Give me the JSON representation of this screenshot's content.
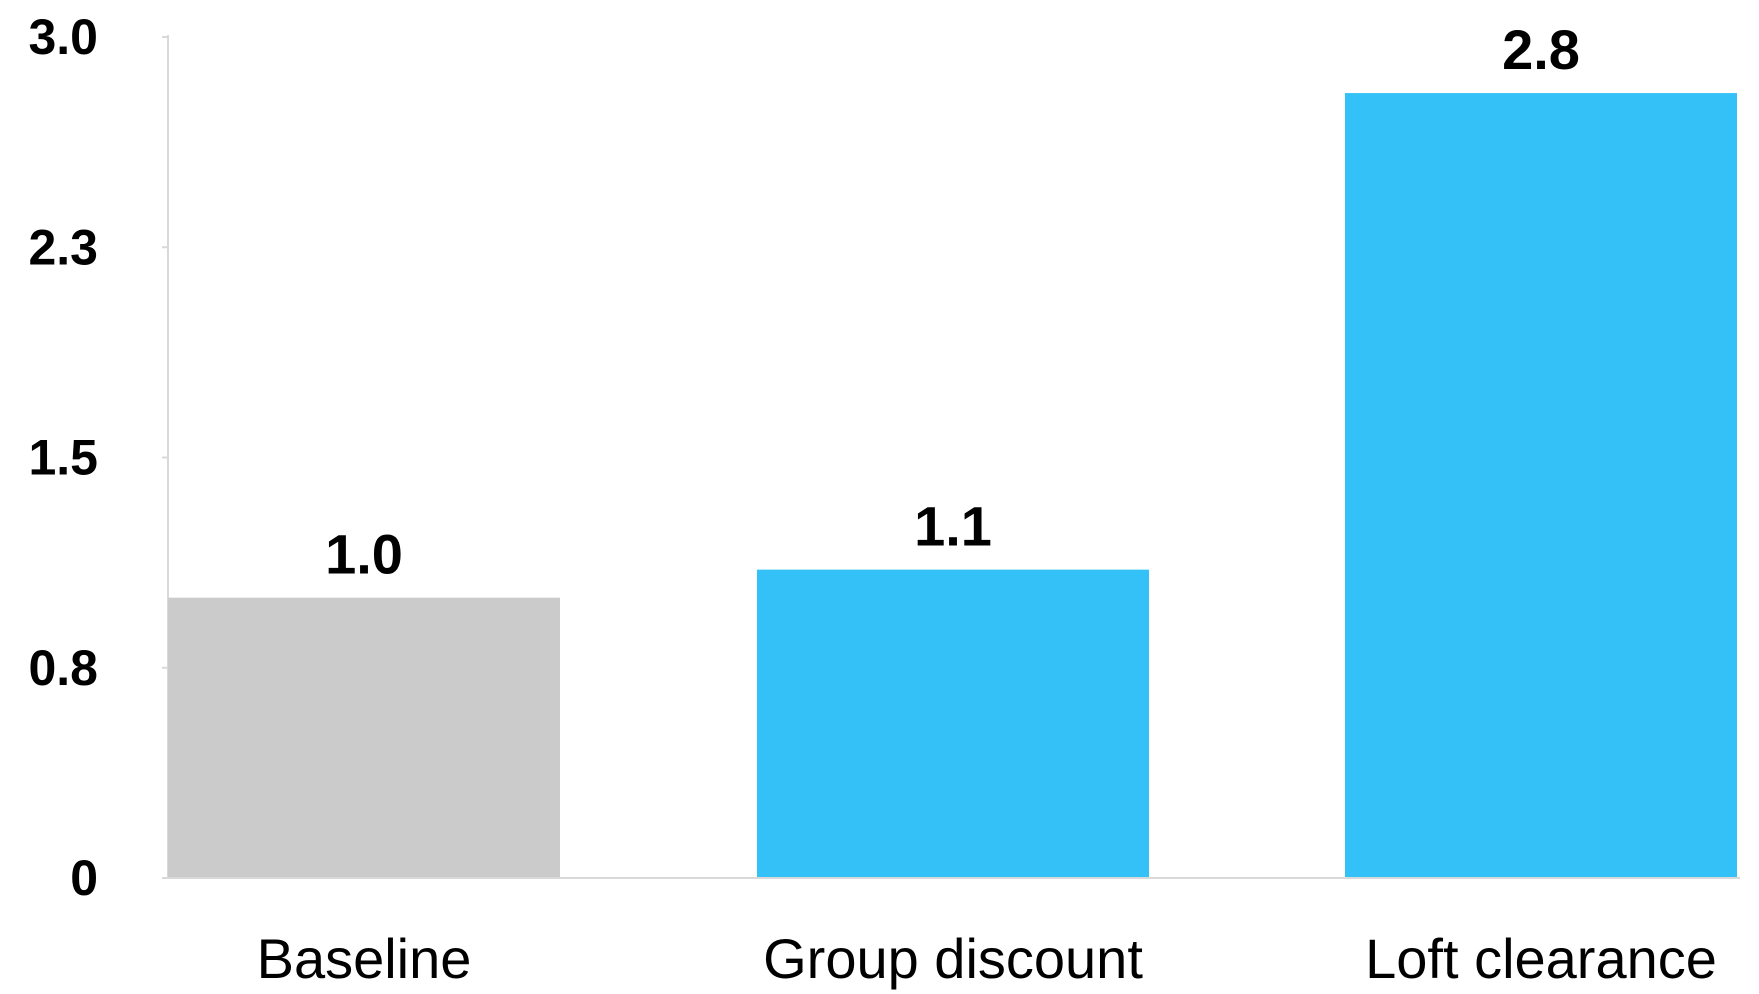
{
  "chart_data": {
    "type": "bar",
    "categories": [
      "Baseline",
      "Group discount",
      "Loft clearance"
    ],
    "values": [
      1.0,
      1.1,
      2.8
    ],
    "data_labels": [
      "1.0",
      "1.1",
      "2.8"
    ],
    "colors": [
      "#cbcbcb",
      "#33c1f7",
      "#33c1f7"
    ],
    "title": "",
    "xlabel": "",
    "ylabel": "",
    "ylim": [
      0,
      3.0
    ],
    "yticks": [
      0,
      0.75,
      1.5,
      2.25,
      3.0
    ],
    "ytick_labels": [
      "0",
      "0.8",
      "1.5",
      "2.3",
      "3.0"
    ],
    "grid": false,
    "axis_color": "#d9d9d9"
  }
}
